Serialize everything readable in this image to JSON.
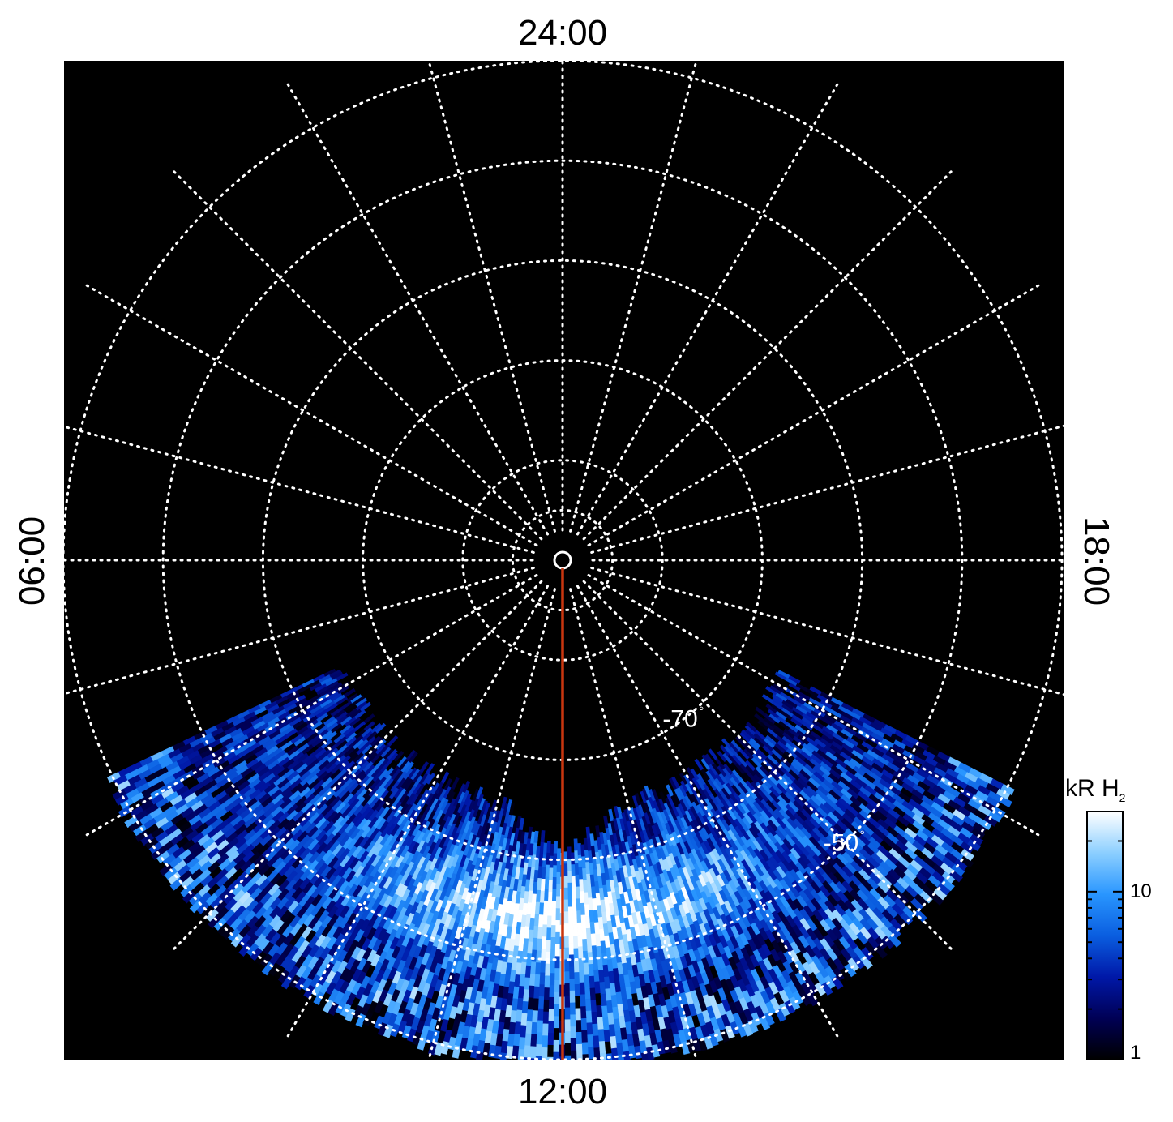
{
  "chart_data": {
    "type": "heatmap",
    "projection": "polar",
    "time_labels": {
      "top": "24:00",
      "bottom": "12:00",
      "left": "06:00",
      "right": "18:00"
    },
    "latitude_labels": [
      {
        "text": "-70",
        "lat": -70
      },
      {
        "text": "-50",
        "lat": -50
      }
    ],
    "latitude_circles": [
      -85,
      -80,
      -70,
      -60,
      -50,
      -40
    ],
    "local_time_meridians_hours": [
      0,
      1,
      2,
      3,
      4,
      5,
      6,
      7,
      8,
      9,
      10,
      11,
      12,
      13,
      14,
      15,
      16,
      17,
      18,
      19,
      20,
      21,
      22,
      23
    ],
    "highlight_meridian_hours": 12,
    "colorbar": {
      "title": "kR H",
      "title_subscript": "2",
      "scale": "log",
      "range": [
        1,
        30
      ],
      "tick_labels": [
        {
          "text": "10",
          "value": 10
        },
        {
          "text": "1",
          "value": 1
        }
      ]
    },
    "emission_region": {
      "description_lat_range": [
        -65,
        -40
      ],
      "local_time_range_hours": [
        7.7,
        16.2
      ],
      "peak_band_lat": [
        -57,
        -52
      ],
      "peak_local_time_hours": 12
    }
  },
  "colors": {
    "background": "#000000",
    "grid": "#ffffff",
    "highlight_meridian": "#c8360f",
    "colormap": [
      "#000000",
      "#000055",
      "#0018a8",
      "#0a5ee0",
      "#2996ff",
      "#8ccfff",
      "#ffffff"
    ]
  }
}
